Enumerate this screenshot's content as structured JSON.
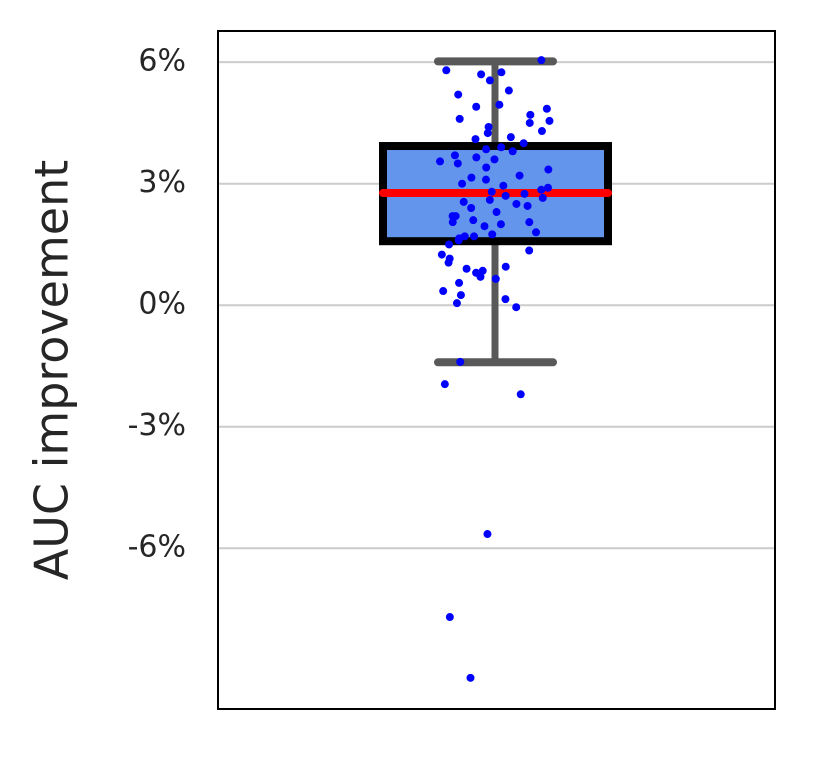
{
  "chart_data": {
    "type": "box",
    "y_label": "AUC improvement",
    "ylim": [
      -9.97,
      6.77
    ],
    "yticks": [
      {
        "value": 6,
        "label": "6%"
      },
      {
        "value": 3,
        "label": "3%"
      },
      {
        "value": 0,
        "label": "0%"
      },
      {
        "value": -3,
        "label": "-3%"
      },
      {
        "value": -6,
        "label": "-6%"
      }
    ],
    "grid": true,
    "box": {
      "whisker_low": -1.41,
      "q1": 1.58,
      "median": 2.77,
      "q3": 3.93,
      "whisker_high": 6.02,
      "color": "#6495ed",
      "median_color": "#ff0000",
      "whisker_color": "#595959"
    },
    "points": {
      "color": "#0000ff",
      "values": [
        6.05,
        5.8,
        5.75,
        5.7,
        5.55,
        5.3,
        5.2,
        4.9,
        4.95,
        4.85,
        4.7,
        4.6,
        4.55,
        4.5,
        4.4,
        4.3,
        4.25,
        4.15,
        4.1,
        4.0,
        3.9,
        3.8,
        3.85,
        3.7,
        3.65,
        3.6,
        3.55,
        3.5,
        3.4,
        3.35,
        3.2,
        3.15,
        3.1,
        3.0,
        2.95,
        2.9,
        2.85,
        2.8,
        2.75,
        2.7,
        2.65,
        2.6,
        2.55,
        2.5,
        2.45,
        2.4,
        2.3,
        2.2,
        2.2,
        2.1,
        2.05,
        2.05,
        2.0,
        1.95,
        1.8,
        1.75,
        1.7,
        1.7,
        1.65,
        1.6,
        1.5,
        1.35,
        1.25,
        1.15,
        1.05,
        0.95,
        0.9,
        0.85,
        0.8,
        0.7,
        0.65,
        0.55,
        0.35,
        0.25,
        0.15,
        0.05,
        -0.05,
        -1.4,
        -1.95,
        -2.2,
        -5.65,
        -7.7,
        -9.2
      ]
    }
  }
}
